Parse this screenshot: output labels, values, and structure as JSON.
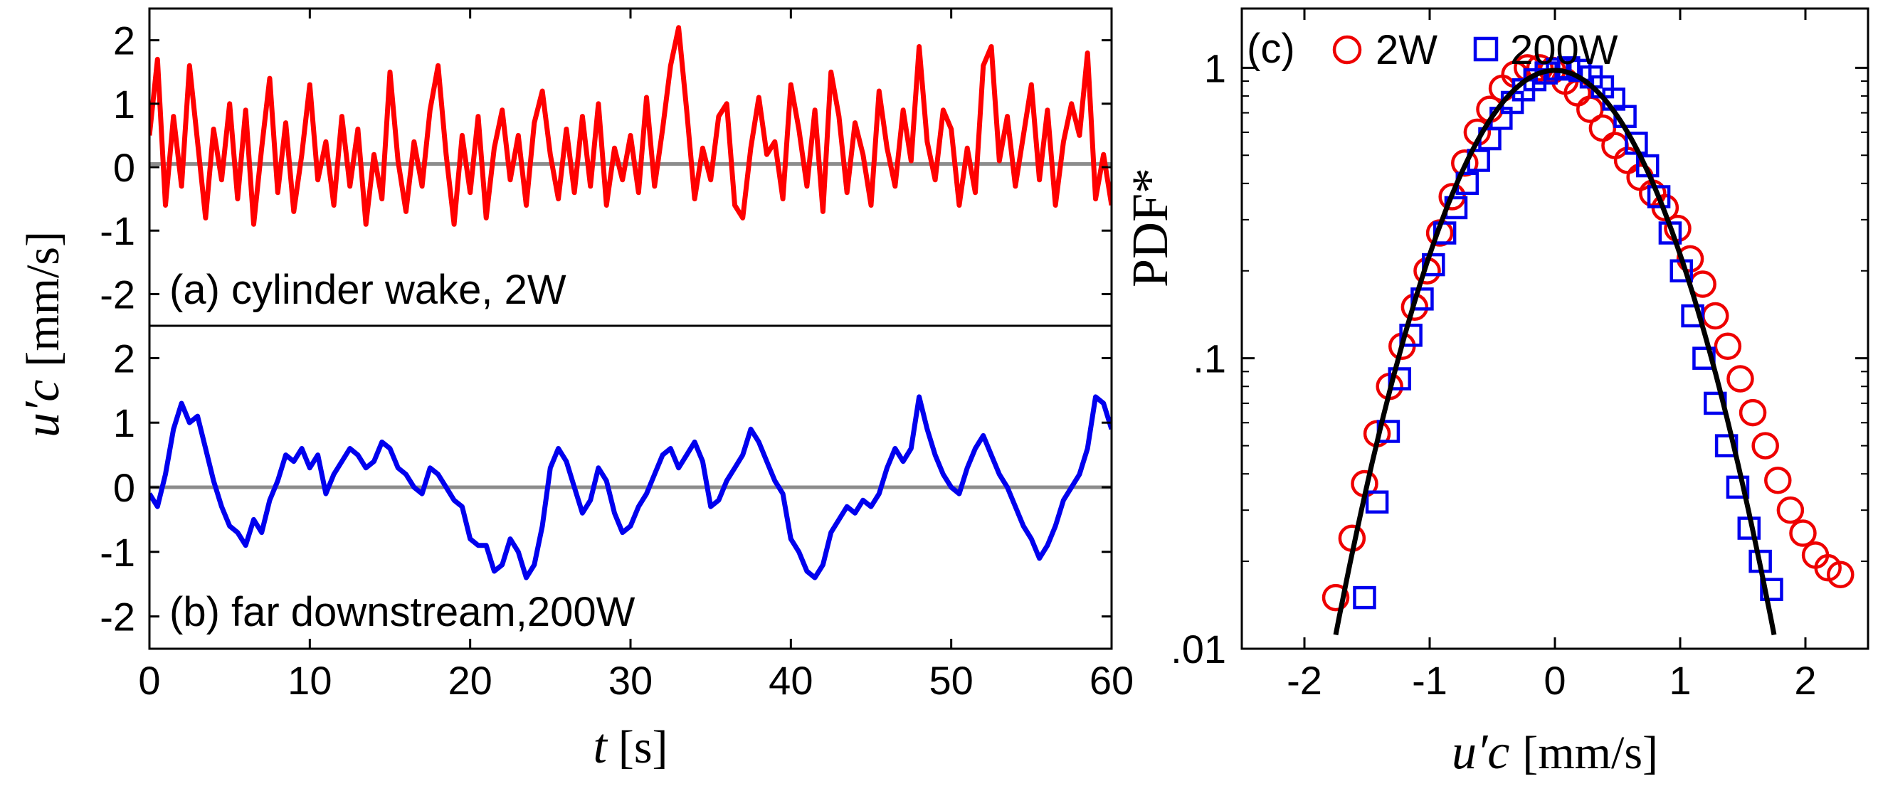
{
  "chart_data": [
    {
      "panel": "a",
      "type": "line",
      "annotation": "(a) cylinder wake, 2W",
      "xlim": [
        0,
        60
      ],
      "ylim": [
        -2.5,
        2.5
      ],
      "xticks": [
        0,
        10,
        20,
        30,
        40,
        50,
        60
      ],
      "yticks": [
        -2,
        -1,
        0,
        1,
        2
      ],
      "series": [
        {
          "color": "#ff0000",
          "x": [
            0,
            0.5,
            1,
            1.5,
            2,
            2.5,
            3,
            3.5,
            4,
            4.5,
            5,
            5.5,
            6,
            6.5,
            7,
            7.5,
            8,
            8.5,
            9,
            9.5,
            10,
            10.5,
            11,
            11.5,
            12,
            12.5,
            13,
            13.5,
            14,
            14.5,
            15,
            15.5,
            16,
            16.5,
            17,
            17.5,
            18,
            18.5,
            19,
            19.5,
            20,
            20.5,
            21,
            21.5,
            22,
            22.5,
            23,
            23.5,
            24,
            24.5,
            25,
            25.5,
            26,
            26.5,
            27,
            27.5,
            28,
            28.5,
            29,
            29.5,
            30,
            30.5,
            31,
            31.5,
            32,
            32.5,
            33,
            33.5,
            34,
            34.5,
            35,
            35.5,
            36,
            36.5,
            37,
            37.5,
            38,
            38.5,
            39,
            39.5,
            40,
            40.5,
            41,
            41.5,
            42,
            42.5,
            43,
            43.5,
            44,
            44.5,
            45,
            45.5,
            46,
            46.5,
            47,
            47.5,
            48,
            48.5,
            49,
            49.5,
            50,
            50.5,
            51,
            51.5,
            52,
            52.5,
            53,
            53.5,
            54,
            54.5,
            55,
            55.5,
            56,
            56.5,
            57,
            57.5,
            58,
            58.5,
            59,
            59.5,
            60
          ],
          "y": [
            0.5,
            1.7,
            -0.6,
            0.8,
            -0.3,
            1.6,
            0.4,
            -0.8,
            0.6,
            -0.2,
            1.0,
            -0.5,
            0.9,
            -0.9,
            0.3,
            1.4,
            -0.4,
            0.7,
            -0.7,
            0.2,
            1.3,
            -0.2,
            0.4,
            -0.6,
            0.8,
            -0.3,
            0.6,
            -0.9,
            0.2,
            -0.5,
            1.5,
            0.1,
            -0.7,
            0.4,
            -0.3,
            0.9,
            1.6,
            0.2,
            -0.9,
            0.5,
            -0.4,
            0.8,
            -0.8,
            0.3,
            0.9,
            -0.2,
            0.5,
            -0.6,
            0.7,
            1.2,
            0.2,
            -0.5,
            0.6,
            -0.4,
            0.8,
            -0.3,
            1.0,
            -0.6,
            0.3,
            -0.2,
            0.5,
            -0.4,
            1.1,
            -0.3,
            0.6,
            1.6,
            2.2,
            0.9,
            -0.5,
            0.3,
            -0.2,
            0.8,
            1.0,
            -0.6,
            -0.8,
            0.3,
            1.1,
            0.2,
            0.4,
            -0.5,
            1.3,
            0.6,
            -0.3,
            0.9,
            -0.7,
            1.5,
            0.8,
            -0.4,
            0.7,
            0.2,
            -0.6,
            1.2,
            0.3,
            -0.3,
            0.9,
            0.1,
            1.9,
            0.4,
            -0.2,
            0.9,
            0.6,
            -0.6,
            0.3,
            -0.4,
            1.6,
            1.9,
            0.1,
            0.8,
            -0.3,
            0.5,
            1.3,
            -0.2,
            0.9,
            -0.6,
            0.4,
            1.0,
            0.5,
            1.8,
            -0.5,
            0.2,
            -0.6
          ]
        },
        {
          "color": "#8c8c8c",
          "x": [
            0,
            60
          ],
          "y": [
            0.05,
            0.05
          ]
        }
      ]
    },
    {
      "panel": "b",
      "type": "line",
      "annotation": "(b) far downstream,200W",
      "xlim": [
        0,
        60
      ],
      "ylim": [
        -2.5,
        2.5
      ],
      "xticks": [
        0,
        10,
        20,
        30,
        40,
        50,
        60
      ],
      "yticks": [
        -2,
        -1,
        0,
        1,
        2
      ],
      "xlabel": "t",
      "xlabel_unit": "[s]",
      "series": [
        {
          "color": "#0000ee",
          "x": [
            0,
            0.5,
            1,
            1.5,
            2,
            2.5,
            3,
            3.5,
            4,
            4.5,
            5,
            5.5,
            6,
            6.5,
            7,
            7.5,
            8,
            8.5,
            9,
            9.5,
            10,
            10.5,
            11,
            11.5,
            12,
            12.5,
            13,
            13.5,
            14,
            14.5,
            15,
            15.5,
            16,
            16.5,
            17,
            17.5,
            18,
            18.5,
            19,
            19.5,
            20,
            20.5,
            21,
            21.5,
            22,
            22.5,
            23,
            23.5,
            24,
            24.5,
            25,
            25.5,
            26,
            26.5,
            27,
            27.5,
            28,
            28.5,
            29,
            29.5,
            30,
            30.5,
            31,
            31.5,
            32,
            32.5,
            33,
            33.5,
            34,
            34.5,
            35,
            35.5,
            36,
            36.5,
            37,
            37.5,
            38,
            38.5,
            39,
            39.5,
            40,
            40.5,
            41,
            41.5,
            42,
            42.5,
            43,
            43.5,
            44,
            44.5,
            45,
            45.5,
            46,
            46.5,
            47,
            47.5,
            48,
            48.5,
            49,
            49.5,
            50,
            50.5,
            51,
            51.5,
            52,
            52.5,
            53,
            53.5,
            54,
            54.5,
            55,
            55.5,
            56,
            56.5,
            57,
            57.5,
            58,
            58.5,
            59,
            59.5,
            60
          ],
          "y": [
            -0.1,
            -0.3,
            0.2,
            0.9,
            1.3,
            1.0,
            1.1,
            0.6,
            0.1,
            -0.3,
            -0.6,
            -0.7,
            -0.9,
            -0.5,
            -0.7,
            -0.2,
            0.1,
            0.5,
            0.4,
            0.6,
            0.3,
            0.5,
            -0.1,
            0.2,
            0.4,
            0.6,
            0.5,
            0.3,
            0.4,
            0.7,
            0.6,
            0.3,
            0.2,
            0.0,
            -0.1,
            0.3,
            0.2,
            0.0,
            -0.2,
            -0.3,
            -0.8,
            -0.9,
            -0.9,
            -1.3,
            -1.2,
            -0.8,
            -1.0,
            -1.4,
            -1.2,
            -0.6,
            0.3,
            0.6,
            0.4,
            0.0,
            -0.4,
            -0.2,
            0.3,
            0.1,
            -0.4,
            -0.7,
            -0.6,
            -0.3,
            -0.1,
            0.2,
            0.5,
            0.6,
            0.3,
            0.5,
            0.7,
            0.4,
            -0.3,
            -0.2,
            0.1,
            0.3,
            0.5,
            0.9,
            0.7,
            0.4,
            0.1,
            -0.1,
            -0.8,
            -1.0,
            -1.3,
            -1.4,
            -1.2,
            -0.7,
            -0.5,
            -0.3,
            -0.4,
            -0.2,
            -0.3,
            -0.1,
            0.3,
            0.6,
            0.4,
            0.6,
            1.4,
            0.9,
            0.5,
            0.2,
            0.0,
            -0.1,
            0.3,
            0.6,
            0.8,
            0.5,
            0.2,
            0.0,
            -0.3,
            -0.6,
            -0.8,
            -1.1,
            -0.9,
            -0.6,
            -0.2,
            0.0,
            0.2,
            0.6,
            1.4,
            1.3,
            0.9
          ]
        },
        {
          "color": "#8c8c8c",
          "x": [
            0,
            60
          ],
          "y": [
            0.0,
            0.0
          ]
        }
      ]
    },
    {
      "panel": "c",
      "type": "scatter",
      "annotation": "(c)",
      "xlim": [
        -2.5,
        2.5
      ],
      "ylim": [
        0.01,
        1.6
      ],
      "y_scale": "log",
      "xticks": [
        -2,
        -1,
        0,
        1,
        2
      ],
      "ytick_values": [
        0.01,
        0.1,
        1
      ],
      "ytick_labels": [
        ".01",
        ".1",
        "1"
      ],
      "xlabel": "u′c",
      "xlabel_unit": "[mm/s]",
      "ylabel": "PDF*",
      "legend_position": "top-left",
      "series": [
        {
          "name": "2W",
          "marker": "circle",
          "color": "#ee0000",
          "x": [
            -1.75,
            -1.62,
            -1.52,
            -1.42,
            -1.32,
            -1.22,
            -1.12,
            -1.02,
            -0.92,
            -0.82,
            -0.72,
            -0.62,
            -0.52,
            -0.42,
            -0.32,
            -0.22,
            -0.12,
            -0.02,
            0.08,
            0.18,
            0.28,
            0.38,
            0.48,
            0.58,
            0.68,
            0.78,
            0.88,
            0.98,
            1.08,
            1.18,
            1.28,
            1.38,
            1.48,
            1.58,
            1.68,
            1.78,
            1.88,
            1.98,
            2.08,
            2.18,
            2.28
          ],
          "y": [
            0.015,
            0.024,
            0.037,
            0.055,
            0.08,
            0.11,
            0.15,
            0.2,
            0.27,
            0.36,
            0.47,
            0.6,
            0.72,
            0.85,
            0.95,
            1.0,
            1.0,
            0.98,
            0.9,
            0.82,
            0.72,
            0.62,
            0.54,
            0.48,
            0.42,
            0.37,
            0.33,
            0.28,
            0.22,
            0.18,
            0.14,
            0.11,
            0.085,
            0.065,
            0.05,
            0.038,
            0.03,
            0.025,
            0.021,
            0.019,
            0.018
          ]
        },
        {
          "name": "200W",
          "marker": "square",
          "color": "#0000ee",
          "x": [
            -1.52,
            -1.42,
            -1.33,
            -1.24,
            -1.15,
            -1.06,
            -0.97,
            -0.88,
            -0.79,
            -0.7,
            -0.61,
            -0.52,
            -0.43,
            -0.34,
            -0.25,
            -0.16,
            -0.07,
            0.02,
            0.11,
            0.2,
            0.29,
            0.38,
            0.47,
            0.56,
            0.65,
            0.74,
            0.83,
            0.92,
            1.01,
            1.1,
            1.19,
            1.28,
            1.37,
            1.46,
            1.55,
            1.64,
            1.73
          ],
          "y": [
            0.015,
            0.032,
            0.056,
            0.085,
            0.12,
            0.16,
            0.21,
            0.27,
            0.33,
            0.4,
            0.48,
            0.57,
            0.67,
            0.76,
            0.84,
            0.91,
            0.96,
            0.99,
            1.0,
            0.98,
            0.93,
            0.86,
            0.78,
            0.68,
            0.55,
            0.46,
            0.36,
            0.27,
            0.2,
            0.14,
            0.1,
            0.07,
            0.05,
            0.036,
            0.026,
            0.02,
            0.016
          ]
        },
        {
          "marker": "none",
          "line": "gaussian-fit",
          "color": "#000000",
          "x_range": [
            -1.75,
            1.75
          ],
          "mean": 0.0,
          "sigma": 0.585,
          "peak": 0.98
        }
      ]
    }
  ],
  "left_ylabel": "u′c",
  "left_ylabel_unit": "[mm/s]"
}
